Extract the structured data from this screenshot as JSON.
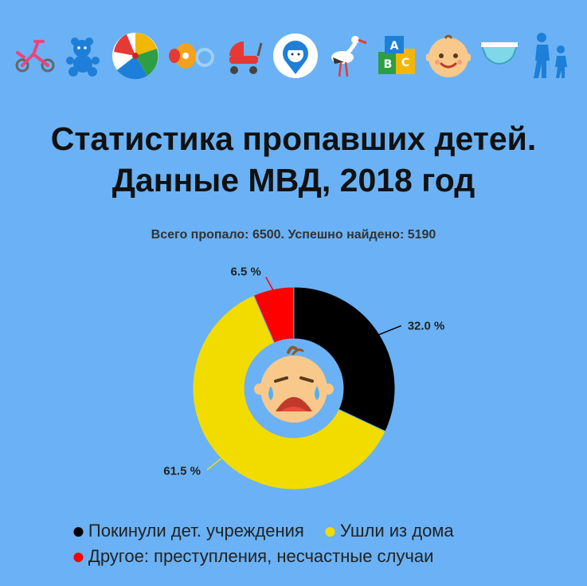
{
  "header": {
    "icons": [
      "tricycle-icon",
      "teddy-bear-icon",
      "beach-ball-icon",
      "pacifier-icon",
      "stroller-icon",
      "child-location-icon",
      "stork-icon",
      "alphabet-blocks-icon",
      "baby-face-icon",
      "diaper-icon",
      "walking-parent-child-icon"
    ],
    "title_line1": "Статистика пропавших детей.",
    "title_line2": "Данные МВД, 2018 год",
    "subtitle": "Всего пропало: 6500. Успешно найдено: 5190"
  },
  "chart_data": {
    "type": "pie",
    "variant": "donut",
    "center_icon": "crying-baby-icon",
    "series": [
      {
        "name": "Покинули дет. учреждения",
        "value": 32.0,
        "label": "32.0 %",
        "color": "#000000"
      },
      {
        "name": "Ушли из дома",
        "value": 61.5,
        "label": "61.5 %",
        "color": "#F2DC00"
      },
      {
        "name": "Другое: преступления, несчастные случаи",
        "value": 6.5,
        "label": "6.5 %",
        "color": "#FF0000"
      }
    ],
    "legend": "bottom"
  },
  "colors": {
    "background": "#6AB2F5",
    "title": "#111111"
  }
}
